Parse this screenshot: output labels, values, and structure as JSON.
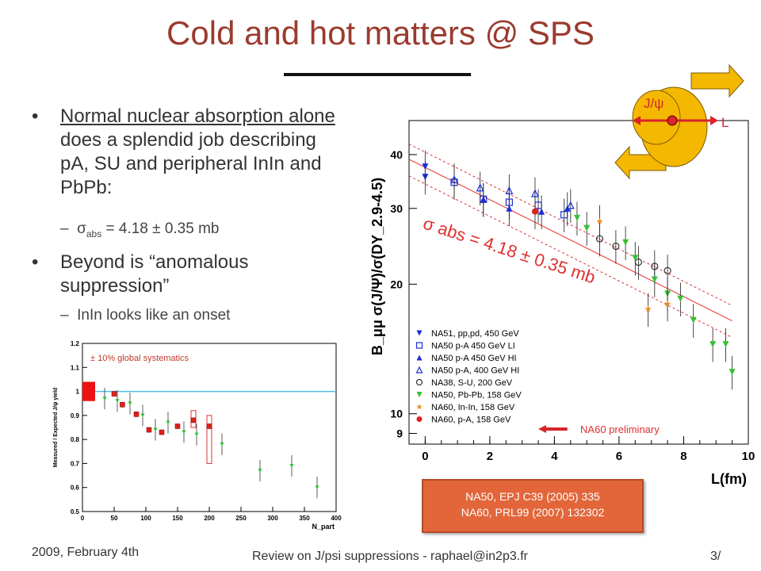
{
  "slide": {
    "title": "Cold and hot matters @ SPS",
    "bullets": [
      {
        "underlined": "Normal nuclear absorption alone",
        "rest": " does a splendid job describing pA, SU and peripheral InIn and PbPb:"
      },
      {
        "text": "Beyond is “anomalous suppression”"
      }
    ],
    "sub_bullets": [
      {
        "sigma": "σ",
        "sub": "abs",
        "text": " = 4.18 ± 0.35 mb"
      },
      {
        "text": "InIn looks like an onset"
      }
    ],
    "footer": {
      "date": "2009, February 4th",
      "center": "Review on J/psi suppressions - raphael@in2p3.fr",
      "page": "3/"
    },
    "reference_box": {
      "line1": "NA50, EPJ C39 (2005) 335",
      "line2": "NA60, PRL99 (2007) 132302"
    },
    "diagram": {
      "jpsi_label": "J/ψ",
      "length_label": "L",
      "colors": {
        "nucleus": "#f5b800",
        "arrow": "#f5b800",
        "line": "#d8242a"
      }
    }
  },
  "chart_data": [
    {
      "type": "scatter",
      "title": "",
      "xlabel": "N_part",
      "ylabel": "Measured / Expected J/ψ yield",
      "xlim": [
        0,
        400
      ],
      "ylim": [
        0.5,
        1.2
      ],
      "x_ticks": [
        0,
        50,
        100,
        150,
        200,
        250,
        300,
        350,
        400
      ],
      "y_ticks": [
        0.5,
        0.6,
        0.7,
        0.8,
        0.9,
        1,
        1.1,
        1.2
      ],
      "reference_line": 1.0,
      "annotation": "± 10% global systematics",
      "series": [
        {
          "color": "#e0201c",
          "marker": "square",
          "points": [
            [
              50,
              0.99
            ],
            [
              63,
              0.945
            ],
            [
              85,
              0.905
            ],
            [
              105,
              0.84
            ],
            [
              125,
              0.83
            ],
            [
              150,
              0.855
            ],
            [
              175,
              0.88
            ],
            [
              200,
              0.855
            ]
          ]
        },
        {
          "color": "#36c036",
          "marker": "triangle-down",
          "points": [
            [
              35,
              0.97
            ],
            [
              55,
              0.96
            ],
            [
              75,
              0.95
            ],
            [
              95,
              0.9
            ],
            [
              115,
              0.84
            ],
            [
              135,
              0.87
            ],
            [
              160,
              0.83
            ],
            [
              180,
              0.82
            ],
            [
              220,
              0.78
            ],
            [
              280,
              0.67
            ],
            [
              330,
              0.69
            ],
            [
              370,
              0.6
            ]
          ]
        }
      ]
    },
    {
      "type": "scatter",
      "title": "",
      "xlabel": "L(fm)",
      "ylabel": "B_μμ σ(J/Ψ)/σ(DY_2.9-4.5)",
      "y_scale": "log",
      "xlim": [
        -0.5,
        10
      ],
      "ylim": [
        8.5,
        48
      ],
      "x_ticks": [
        0,
        2,
        4,
        6,
        8,
        10
      ],
      "y_ticks": [
        9,
        10,
        20,
        30,
        40
      ],
      "fit_label": "σ abs = 4.18 ± 0.35 mb",
      "fit": {
        "slope": -0.0418,
        "intercept": 38.2,
        "band_factor": 0.085
      },
      "preliminary_label": "NA60 preliminary",
      "legend": [
        {
          "label": "NA51, pp,pd, 450 GeV",
          "color": "#1a2ed8",
          "marker": "triangle-down"
        },
        {
          "label": "NA50 p-A 450 GeV LI",
          "color": "#1a2ed8",
          "marker": "square-open"
        },
        {
          "label": "NA50 p-A 450 GeV HI",
          "color": "#1a2ed8",
          "marker": "triangle-up"
        },
        {
          "label": "NA50 p-A, 400 GeV HI",
          "color": "#1a2ed8",
          "marker": "triangle-open"
        },
        {
          "label": "NA38, S-U, 200 GeV",
          "color": "#333333",
          "marker": "circle-open"
        },
        {
          "label": "NA50, Pb-Pb, 158 GeV",
          "color": "#36c036",
          "marker": "triangle-down"
        },
        {
          "label": "NA60, In-In, 158 GeV",
          "color": "#f08a20",
          "marker": "star"
        },
        {
          "label": "NA60, p-A, 158 GeV",
          "color": "#e0201c",
          "marker": "circle"
        }
      ],
      "series": [
        {
          "marker": "triangle-down",
          "color": "#1a2ed8",
          "points": [
            [
              0.0,
              35.5
            ],
            [
              0.0,
              37.5
            ]
          ]
        },
        {
          "marker": "square-open",
          "color": "#1a2ed8",
          "points": [
            [
              0.9,
              34.5
            ],
            [
              1.8,
              31.5
            ],
            [
              2.6,
              31.0
            ],
            [
              3.5,
              30.5
            ],
            [
              4.3,
              29.0
            ]
          ]
        },
        {
          "marker": "triangle-up",
          "color": "#1a2ed8",
          "points": [
            [
              1.8,
              31.5
            ],
            [
              2.6,
              30.0
            ],
            [
              3.6,
              29.5
            ],
            [
              4.4,
              30.0
            ]
          ]
        },
        {
          "marker": "triangle-open",
          "color": "#1a2ed8",
          "points": [
            [
              0.9,
              35.0
            ],
            [
              1.7,
              33.5
            ],
            [
              2.6,
              33.0
            ],
            [
              3.4,
              32.5
            ],
            [
              4.5,
              30.5
            ]
          ]
        },
        {
          "marker": "circle-open",
          "color": "#333333",
          "points": [
            [
              5.4,
              25.5
            ],
            [
              5.9,
              24.5
            ],
            [
              6.6,
              22.5
            ],
            [
              7.1,
              22.0
            ],
            [
              7.5,
              21.5
            ]
          ]
        },
        {
          "marker": "triangle-down",
          "color": "#36c036",
          "points": [
            [
              4.7,
              28.5
            ],
            [
              5.0,
              27.0
            ],
            [
              6.2,
              25.0
            ],
            [
              6.5,
              23.0
            ],
            [
              7.1,
              20.5
            ],
            [
              7.5,
              19.0
            ],
            [
              7.9,
              18.5
            ],
            [
              8.3,
              16.5
            ],
            [
              8.9,
              14.5
            ],
            [
              9.3,
              14.5
            ],
            [
              9.5,
              12.5
            ]
          ]
        },
        {
          "marker": "star",
          "color": "#f08a20",
          "points": [
            [
              5.4,
              28.0
            ],
            [
              6.9,
              17.5
            ],
            [
              7.5,
              18.0
            ]
          ]
        },
        {
          "marker": "circle",
          "color": "#e0201c",
          "points": [
            [
              3.4,
              29.5
            ]
          ]
        }
      ]
    }
  ]
}
